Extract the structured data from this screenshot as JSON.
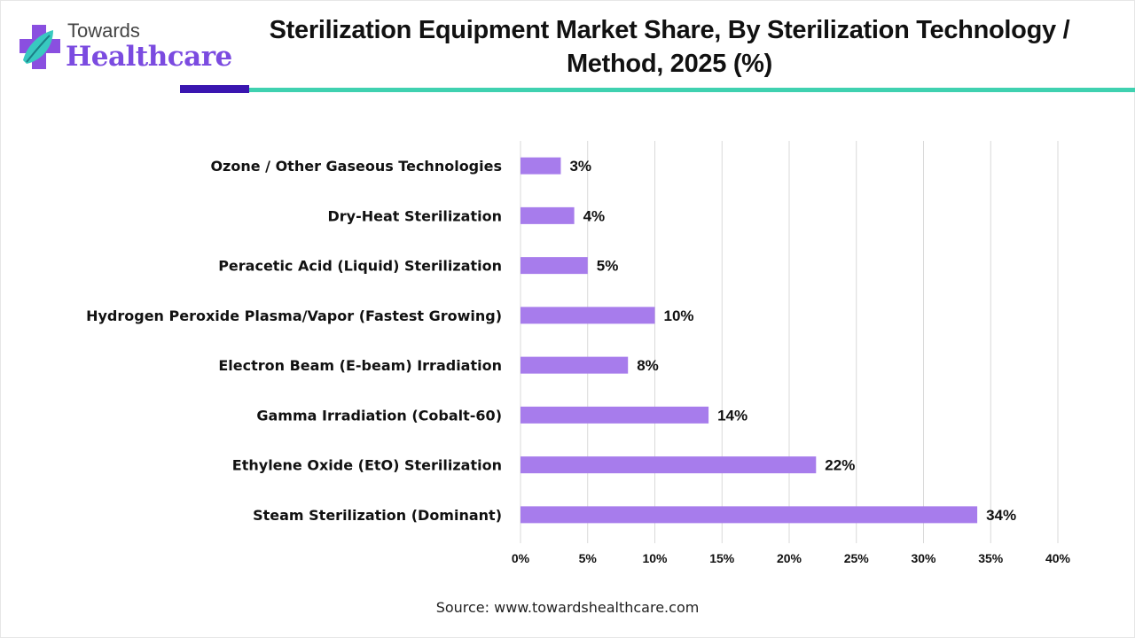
{
  "brand": {
    "line1": "Towards",
    "line2": "Healthcare",
    "primary_color": "#7b4be0",
    "accent_color": "#3fd1b0",
    "dark_color": "#3a16b0"
  },
  "source": "Source: www.towardshealthcare.com",
  "chart_data": {
    "type": "bar",
    "orientation": "horizontal",
    "title": "Sterilization Equipment Market Share, By Sterilization Technology / Method, 2025 (%)",
    "xlabel": "",
    "ylabel": "",
    "xlim": [
      0,
      40
    ],
    "grid": true,
    "bar_color": "#a77cec",
    "categories": [
      "Ozone / Other Gaseous Technologies",
      "Dry-Heat Sterilization",
      "Peracetic Acid (Liquid) Sterilization",
      "Hydrogen Peroxide Plasma/Vapor (Fastest Growing)",
      "Electron Beam (E-beam) Irradiation",
      "Gamma Irradiation (Cobalt-60)",
      "Ethylene Oxide (EtO) Sterilization",
      "Steam Sterilization (Dominant)"
    ],
    "values": [
      3,
      4,
      5,
      10,
      8,
      14,
      22,
      34
    ],
    "value_labels": [
      "3%",
      "4%",
      "5%",
      "10%",
      "8%",
      "14%",
      "22%",
      "34%"
    ],
    "x_ticks": [
      0,
      5,
      10,
      15,
      20,
      25,
      30,
      35,
      40
    ],
    "x_tick_labels": [
      "0%",
      "5%",
      "10%",
      "15%",
      "20%",
      "25%",
      "30%",
      "35%",
      "40%"
    ]
  }
}
